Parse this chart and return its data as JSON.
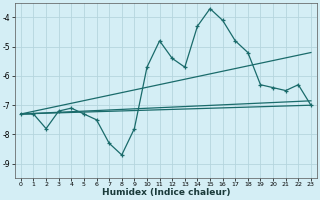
{
  "xlabel": "Humidex (Indice chaleur)",
  "bg_color": "#d4eef5",
  "grid_color": "#b5d5de",
  "line_color": "#1a6b6b",
  "xlim": [
    -0.5,
    23.5
  ],
  "ylim": [
    -9.5,
    -3.5
  ],
  "yticks": [
    -9,
    -8,
    -7,
    -6,
    -5,
    -4
  ],
  "xticks": [
    0,
    1,
    2,
    3,
    4,
    5,
    6,
    7,
    8,
    9,
    10,
    11,
    12,
    13,
    14,
    15,
    16,
    17,
    18,
    19,
    20,
    21,
    22,
    23
  ],
  "series1_x": [
    0,
    1,
    2,
    3,
    4,
    5,
    6,
    7,
    8,
    9,
    10,
    11,
    12,
    13,
    14,
    15,
    16,
    17,
    18,
    19,
    20,
    21,
    22,
    23
  ],
  "series1_y": [
    -7.3,
    -7.3,
    -7.8,
    -7.2,
    -7.1,
    -7.3,
    -7.5,
    -8.3,
    -8.7,
    -7.8,
    -5.7,
    -4.8,
    -5.4,
    -5.7,
    -4.3,
    -3.7,
    -4.1,
    -4.8,
    -5.2,
    -6.3,
    -6.4,
    -6.5,
    -6.3,
    -7.0
  ],
  "series2_x": [
    0,
    23
  ],
  "series2_y": [
    -7.3,
    -5.2
  ],
  "series3_x": [
    0,
    23
  ],
  "series3_y": [
    -7.3,
    -7.0
  ],
  "series4_x": [
    0,
    23
  ],
  "series4_y": [
    -7.3,
    -6.85
  ]
}
